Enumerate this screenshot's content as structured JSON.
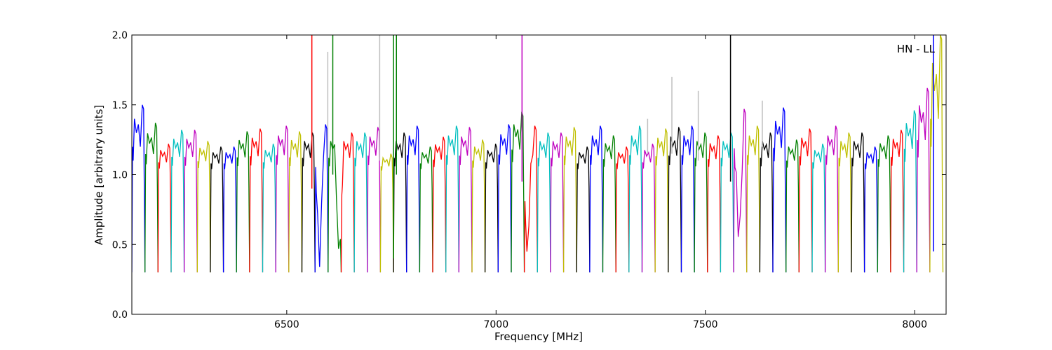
{
  "chart_data": {
    "type": "line",
    "title": "",
    "xlabel": "Frequency [MHz]",
    "ylabel": "Amplitude [arbitrary units]",
    "annotation": "HN - LL",
    "xlim": [
      6130,
      8075
    ],
    "ylim": [
      0.0,
      2.0
    ],
    "x_ticks": [
      6500,
      7000,
      7500,
      8000
    ],
    "y_ticks": [
      0.0,
      0.5,
      1.0,
      1.5,
      2.0
    ],
    "y_tick_labels": [
      "0.0",
      "0.5",
      "1.0",
      "1.5",
      "2.0"
    ],
    "grid": false,
    "legend": "none",
    "color_cycle": [
      "#0000ff",
      "#008000",
      "#ff0000",
      "#00bfbf",
      "#bf00bf",
      "#bfbf00",
      "#000000"
    ],
    "background_series_color": "#bfbfbf",
    "channel_width_mhz": 31.25,
    "first_channel_start_mhz": 6130,
    "channel_shape": {
      "offset": [
        0,
        0.05,
        0.1,
        0.2,
        0.35,
        0.5,
        0.65,
        0.8,
        0.9,
        0.95,
        1.0
      ],
      "amplitude": [
        0.3,
        1.1,
        1.05,
        1.2,
        1.15,
        1.18,
        1.1,
        1.25,
        1.25,
        0.9,
        0.3
      ]
    },
    "channel_peaks": [
      1.5,
      1.37,
      1.22,
      1.32,
      1.32,
      1.24,
      1.2,
      1.2,
      1.31,
      1.33,
      1.22,
      1.35,
      1.31,
      1.3,
      1.36,
      1.3,
      1.3,
      1.3,
      1.34,
      1.15,
      1.3,
      1.35,
      1.2,
      1.27,
      1.35,
      1.34,
      1.25,
      1.22,
      1.36,
      1.45,
      1.35,
      1.3,
      1.3,
      1.34,
      1.2,
      1.35,
      1.28,
      1.2,
      1.35,
      1.22,
      1.33,
      1.34,
      1.35,
      1.3,
      1.28,
      1.3,
      1.47,
      1.35,
      1.3,
      1.48,
      1.25,
      1.33,
      1.22,
      1.35,
      1.3,
      1.3,
      1.2,
      1.28,
      1.32,
      1.46,
      1.62,
      2.0
    ],
    "spikes": [
      {
        "x": 6560,
        "min": 0.9,
        "max": 2.0,
        "color": "#ff0000"
      },
      {
        "x": 6598,
        "min": 1.1,
        "max": 1.88,
        "color": "#bfbfbf"
      },
      {
        "x": 6610,
        "min": 1.0,
        "max": 2.0,
        "color": "#008000"
      },
      {
        "x": 6722,
        "min": 1.1,
        "max": 2.0,
        "color": "#bfbfbf"
      },
      {
        "x": 6755,
        "min": 0.4,
        "max": 2.0,
        "color": "#008000"
      },
      {
        "x": 6762,
        "min": 1.0,
        "max": 2.0,
        "color": "#008000"
      },
      {
        "x": 7062,
        "min": 0.95,
        "max": 2.0,
        "color": "#bf00bf"
      },
      {
        "x": 7362,
        "min": 1.15,
        "max": 1.4,
        "color": "#bfbfbf"
      },
      {
        "x": 7420,
        "min": 1.15,
        "max": 1.7,
        "color": "#bfbfbf"
      },
      {
        "x": 7483,
        "min": 1.1,
        "max": 1.6,
        "color": "#bfbfbf"
      },
      {
        "x": 7560,
        "min": 0.95,
        "max": 2.0,
        "color": "#000000"
      },
      {
        "x": 7636,
        "min": 1.2,
        "max": 1.53,
        "color": "#bfbfbf"
      },
      {
        "x": 8045,
        "min": 0.45,
        "max": 2.0,
        "color": "#0000ff"
      }
    ],
    "dips": [
      {
        "x": 6578,
        "depth": 0.3
      },
      {
        "x": 6625,
        "depth": 0.35
      },
      {
        "x": 7075,
        "depth": 0.33
      },
      {
        "x": 7580,
        "depth": 0.42
      }
    ]
  }
}
